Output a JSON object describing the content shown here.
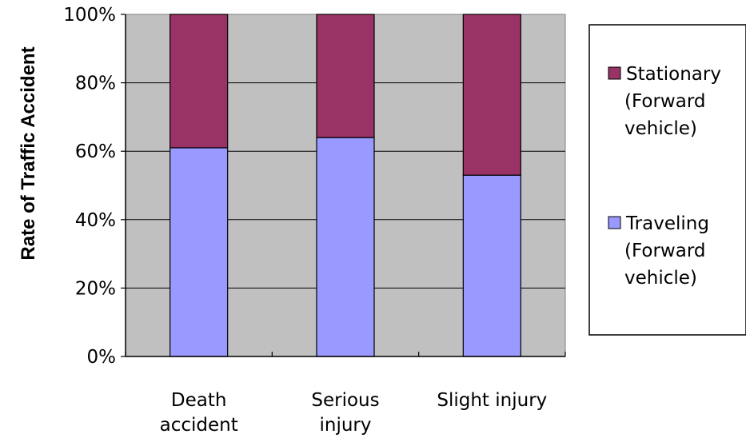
{
  "chart_data": {
    "type": "bar",
    "stacked": true,
    "percent_stacked": true,
    "title": "",
    "xlabel": "",
    "ylabel": "Rate of Traffic Accident",
    "ylim": [
      0,
      100
    ],
    "y_ticks": [
      "0%",
      "20%",
      "40%",
      "60%",
      "80%",
      "100%"
    ],
    "categories": [
      [
        "Death",
        "accident"
      ],
      [
        "Serious",
        "injury"
      ],
      [
        "Slight injury"
      ]
    ],
    "series": [
      {
        "name": [
          "Traveling",
          "(Forward",
          "vehicle)"
        ],
        "values": [
          61,
          64,
          53
        ],
        "color": "#9999ff"
      },
      {
        "name": [
          "Stationary",
          "(Forward",
          "vehicle)"
        ],
        "values": [
          39,
          36,
          47
        ],
        "color": "#993366"
      }
    ],
    "legend_position": "right",
    "plot_background": "#c0c0c0",
    "grid": true
  }
}
